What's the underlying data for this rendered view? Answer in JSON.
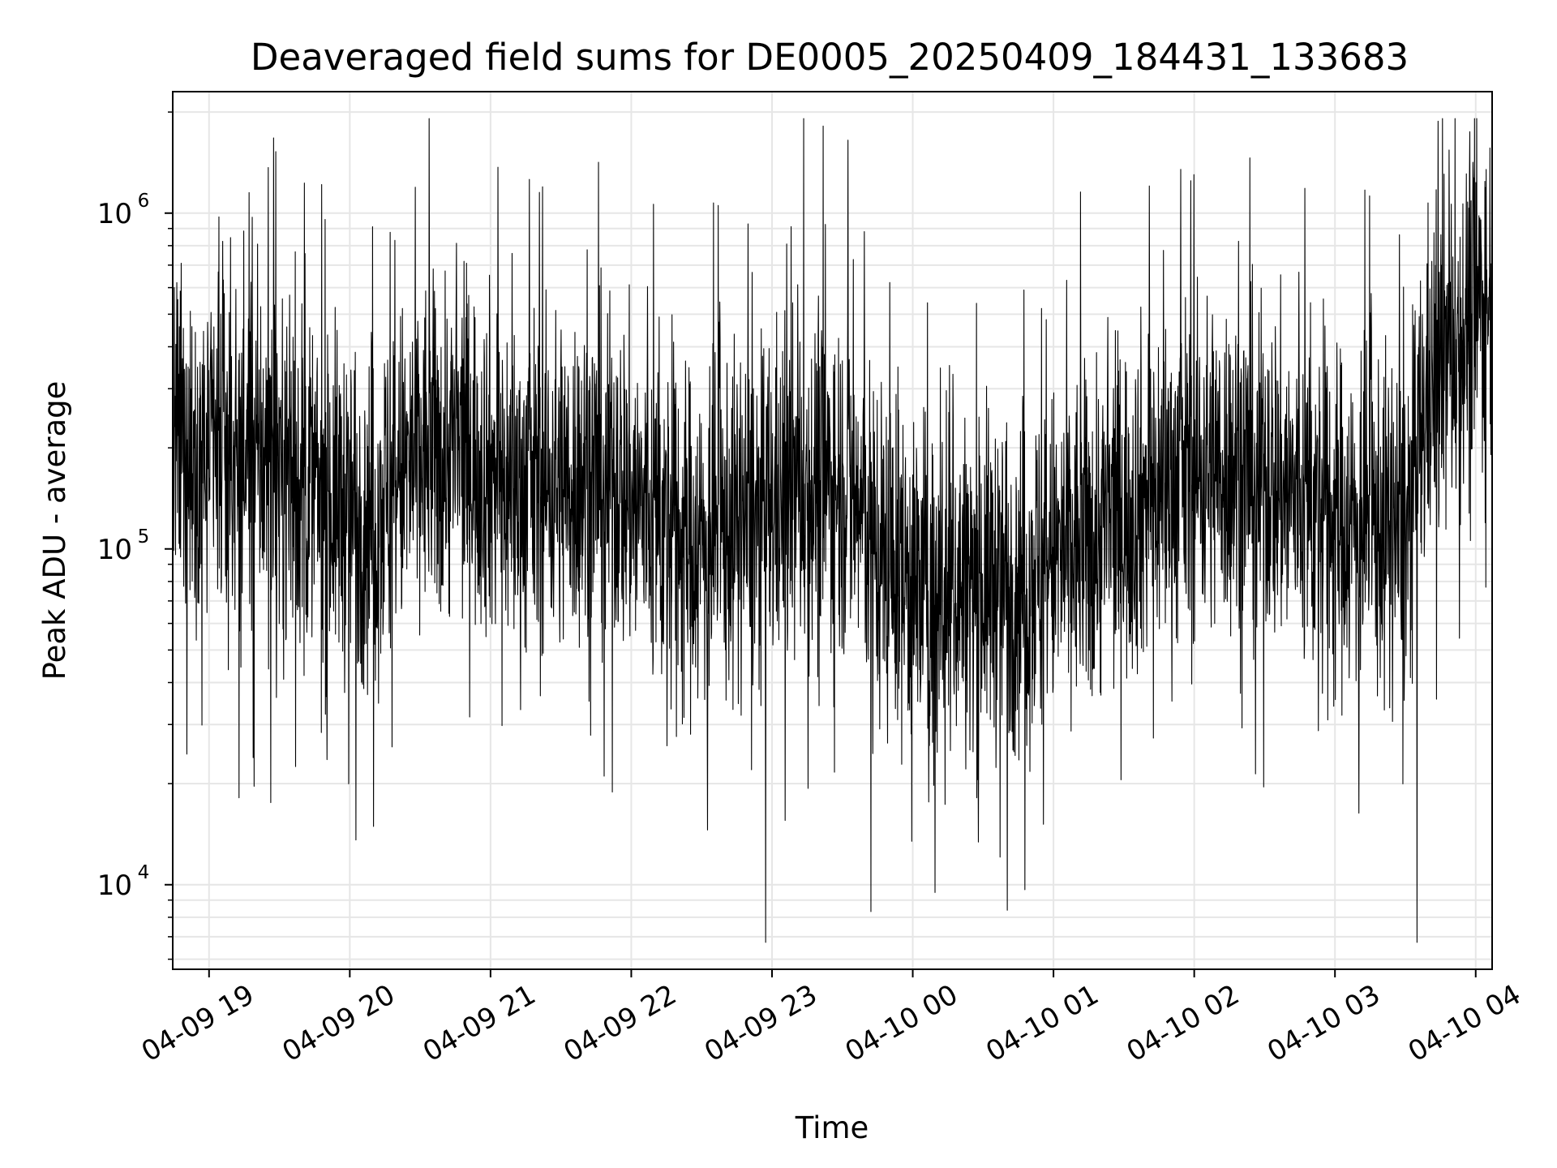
{
  "chart_data": {
    "type": "line",
    "title": "Deaveraged field sums for DE0005_20250409_184431_133683",
    "xlabel": "Time",
    "ylabel": "Peak ADU - average",
    "yscale": "log",
    "ylim": [
      5600,
      2300000
    ],
    "xlim": [
      "2025-04-09T18:44:31",
      "2025-04-10T04:07:00"
    ],
    "grid": true,
    "line_color": "#000000",
    "grid_color": "#e6e6e6",
    "x_ticks": [
      {
        "time": "2025-04-09T19:00",
        "label": "04-09 19"
      },
      {
        "time": "2025-04-09T20:00",
        "label": "04-09 20"
      },
      {
        "time": "2025-04-09T21:00",
        "label": "04-09 21"
      },
      {
        "time": "2025-04-09T22:00",
        "label": "04-09 22"
      },
      {
        "time": "2025-04-09T23:00",
        "label": "04-09 23"
      },
      {
        "time": "2025-04-10T00:00",
        "label": "04-10 00"
      },
      {
        "time": "2025-04-10T01:00",
        "label": "04-10 01"
      },
      {
        "time": "2025-04-10T02:00",
        "label": "04-10 02"
      },
      {
        "time": "2025-04-10T03:00",
        "label": "04-10 03"
      },
      {
        "time": "2025-04-10T04:00",
        "label": "04-10 04"
      }
    ],
    "y_ticks": [
      {
        "value": 10000,
        "base": "10",
        "exp": "4"
      },
      {
        "value": 100000,
        "base": "10",
        "exp": "5"
      },
      {
        "value": 1000000,
        "base": "10",
        "exp": "6"
      }
    ],
    "series": [
      {
        "envelope_points": [
          {
            "x": "2025-04-09T18:45",
            "y": 200000
          },
          {
            "x": "2025-04-09T19:05",
            "y": 190000
          },
          {
            "x": "2025-04-09T19:30",
            "y": 180000
          },
          {
            "x": "2025-04-09T19:50",
            "y": 140000
          },
          {
            "x": "2025-04-09T20:10",
            "y": 130000
          },
          {
            "x": "2025-04-09T20:30",
            "y": 190000
          },
          {
            "x": "2025-04-09T20:50",
            "y": 200000
          },
          {
            "x": "2025-04-09T21:10",
            "y": 150000
          },
          {
            "x": "2025-04-09T21:30",
            "y": 160000
          },
          {
            "x": "2025-04-09T21:50",
            "y": 170000
          },
          {
            "x": "2025-04-09T22:10",
            "y": 120000
          },
          {
            "x": "2025-04-09T22:30",
            "y": 105000
          },
          {
            "x": "2025-04-09T22:50",
            "y": 120000
          },
          {
            "x": "2025-04-09T23:10",
            "y": 150000
          },
          {
            "x": "2025-04-09T23:30",
            "y": 160000
          },
          {
            "x": "2025-04-09T23:50",
            "y": 90000
          },
          {
            "x": "2025-04-10T00:10",
            "y": 75000
          },
          {
            "x": "2025-04-10T00:30",
            "y": 80000
          },
          {
            "x": "2025-04-10T00:50",
            "y": 85000
          },
          {
            "x": "2025-04-10T01:10",
            "y": 100000
          },
          {
            "x": "2025-04-10T01:30",
            "y": 130000
          },
          {
            "x": "2025-04-10T01:50",
            "y": 160000
          },
          {
            "x": "2025-04-10T02:10",
            "y": 180000
          },
          {
            "x": "2025-04-10T02:30",
            "y": 170000
          },
          {
            "x": "2025-04-10T02:50",
            "y": 130000
          },
          {
            "x": "2025-04-10T03:10",
            "y": 120000
          },
          {
            "x": "2025-04-10T03:30",
            "y": 110000
          },
          {
            "x": "2025-04-10T03:40",
            "y": 300000
          },
          {
            "x": "2025-04-10T03:55",
            "y": 450000
          },
          {
            "x": "2025-04-10T04:07",
            "y": 600000
          }
        ]
      }
    ]
  }
}
